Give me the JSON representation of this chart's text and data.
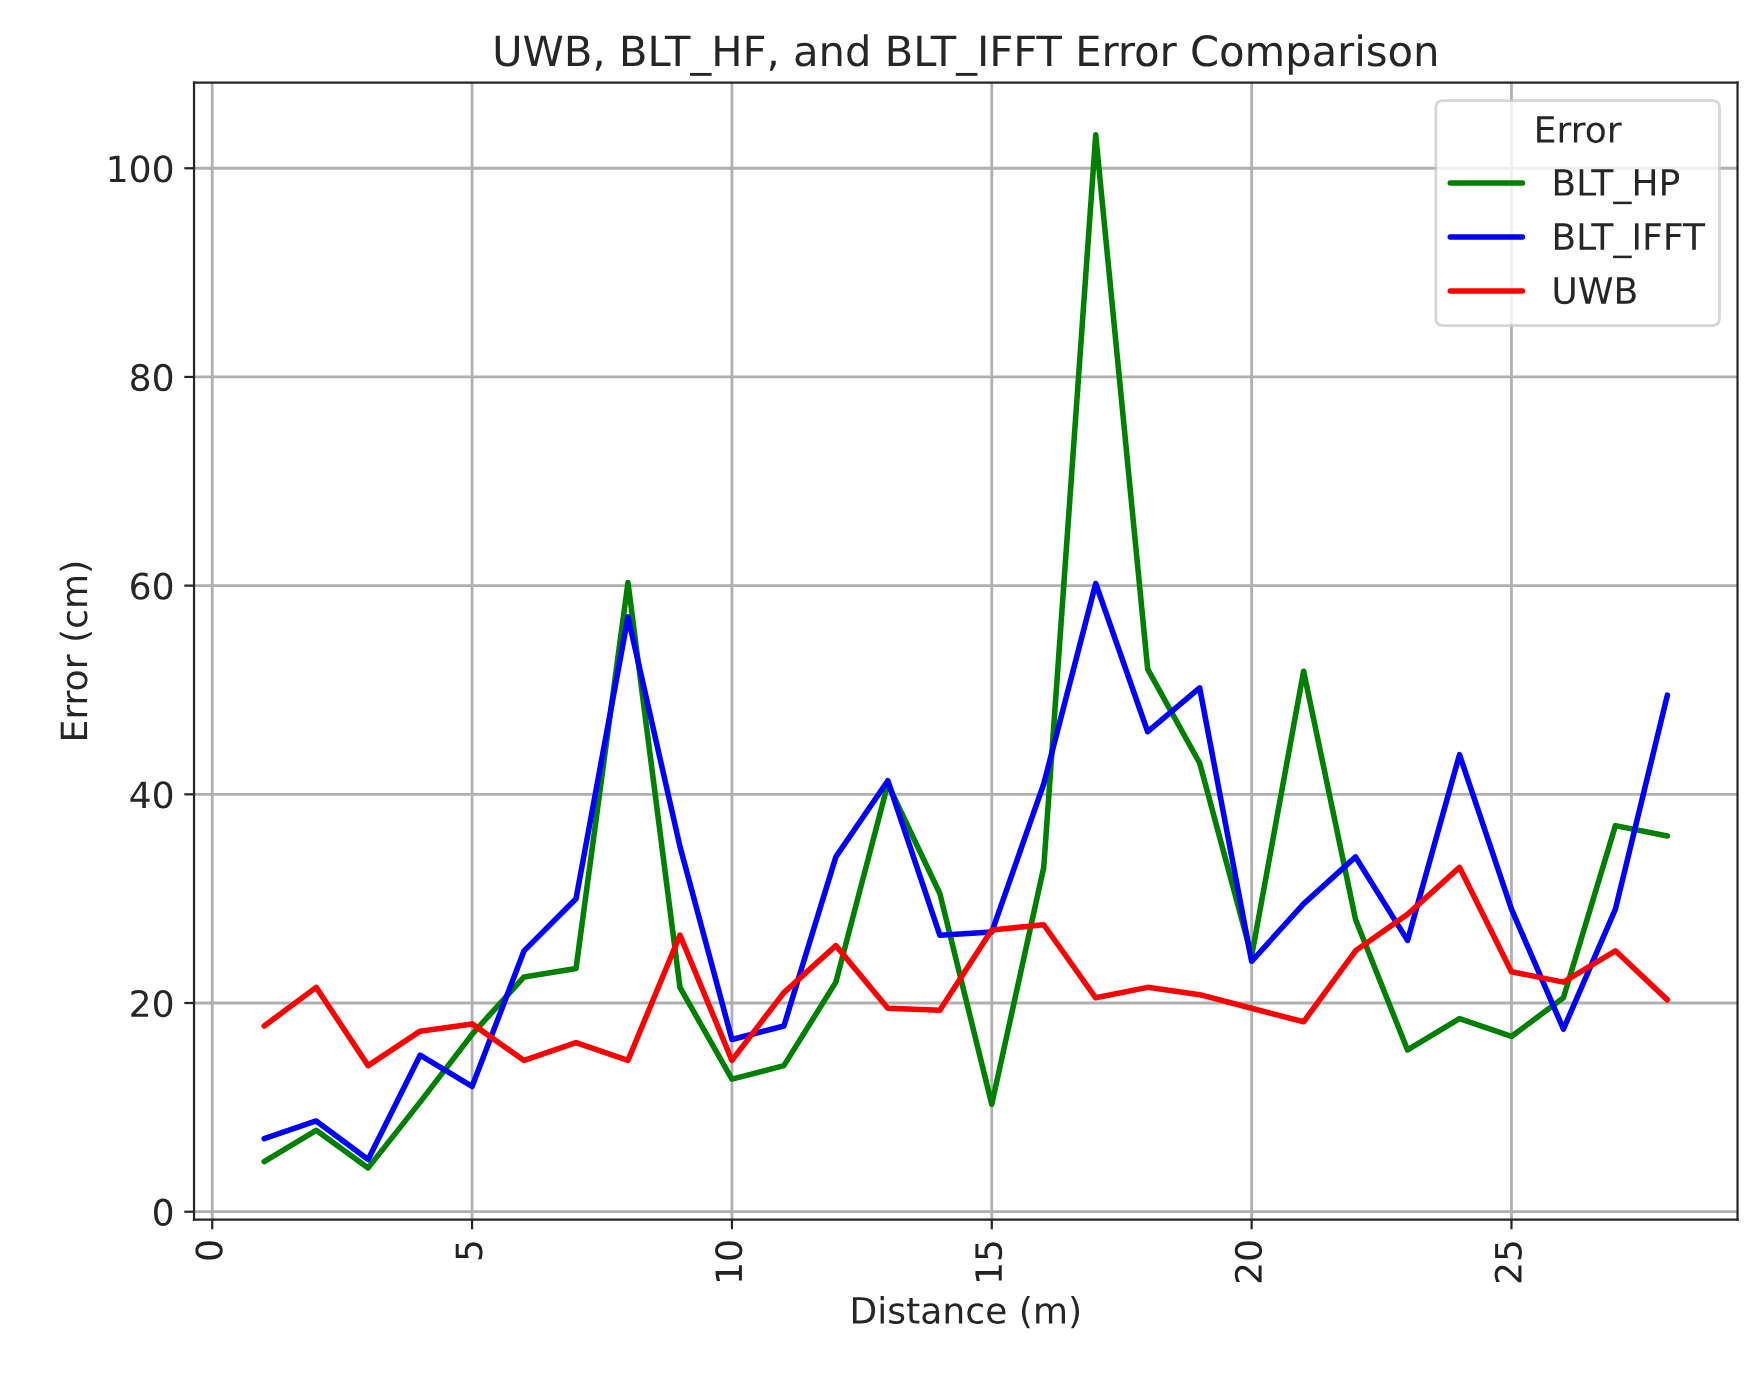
{
  "chart_data": {
    "type": "line",
    "title": "UWB, BLT_HF, and BLT_IFFT Error Comparison",
    "xlabel": "Distance (m)",
    "ylabel": "Error (cm)",
    "legend_title": "Error",
    "x": [
      1,
      2,
      3,
      4,
      5,
      6,
      7,
      8,
      9,
      10,
      11,
      12,
      13,
      14,
      15,
      16,
      17,
      18,
      19,
      20,
      21,
      22,
      23,
      24,
      25,
      26,
      27,
      28
    ],
    "series": [
      {
        "name": "BLT_HP",
        "color": "#008000",
        "values": [
          4.8,
          7.8,
          4.2,
          10.5,
          17,
          22.5,
          23.3,
          60.3,
          21.5,
          12.7,
          14,
          22,
          41,
          30.5,
          10.3,
          33,
          103.2,
          52,
          43,
          24.5,
          51.8,
          28,
          15.5,
          18.5,
          16.8,
          20.5,
          37,
          36
        ]
      },
      {
        "name": "BLT_IFFT",
        "color": "#0000ff",
        "values": [
          7,
          8.7,
          5,
          15,
          12,
          25,
          30,
          57,
          35,
          16.5,
          17.8,
          34,
          41.3,
          26.5,
          26.8,
          41,
          60.2,
          46,
          50.2,
          24,
          29.5,
          34,
          26,
          43.8,
          29,
          17.5,
          29,
          49.5
        ]
      },
      {
        "name": "UWB",
        "color": "#ff0000",
        "values": [
          17.8,
          21.5,
          14,
          17.3,
          18,
          14.5,
          16.2,
          14.5,
          26.5,
          14.5,
          21,
          25.5,
          19.5,
          19.3,
          27,
          27.5,
          20.5,
          21.5,
          20.8,
          19.5,
          18.2,
          25,
          28.5,
          33,
          23,
          22,
          25,
          20.3
        ]
      }
    ],
    "xlim": [
      -0.35,
      29.35
    ],
    "ylim": [
      -0.75,
      108.2
    ],
    "xticks": [
      0,
      5,
      10,
      15,
      20,
      25
    ],
    "yticks": [
      0,
      20,
      40,
      60,
      80,
      100
    ],
    "grid": true,
    "legend": "top right",
    "marker": "none",
    "line_style": "solid"
  }
}
